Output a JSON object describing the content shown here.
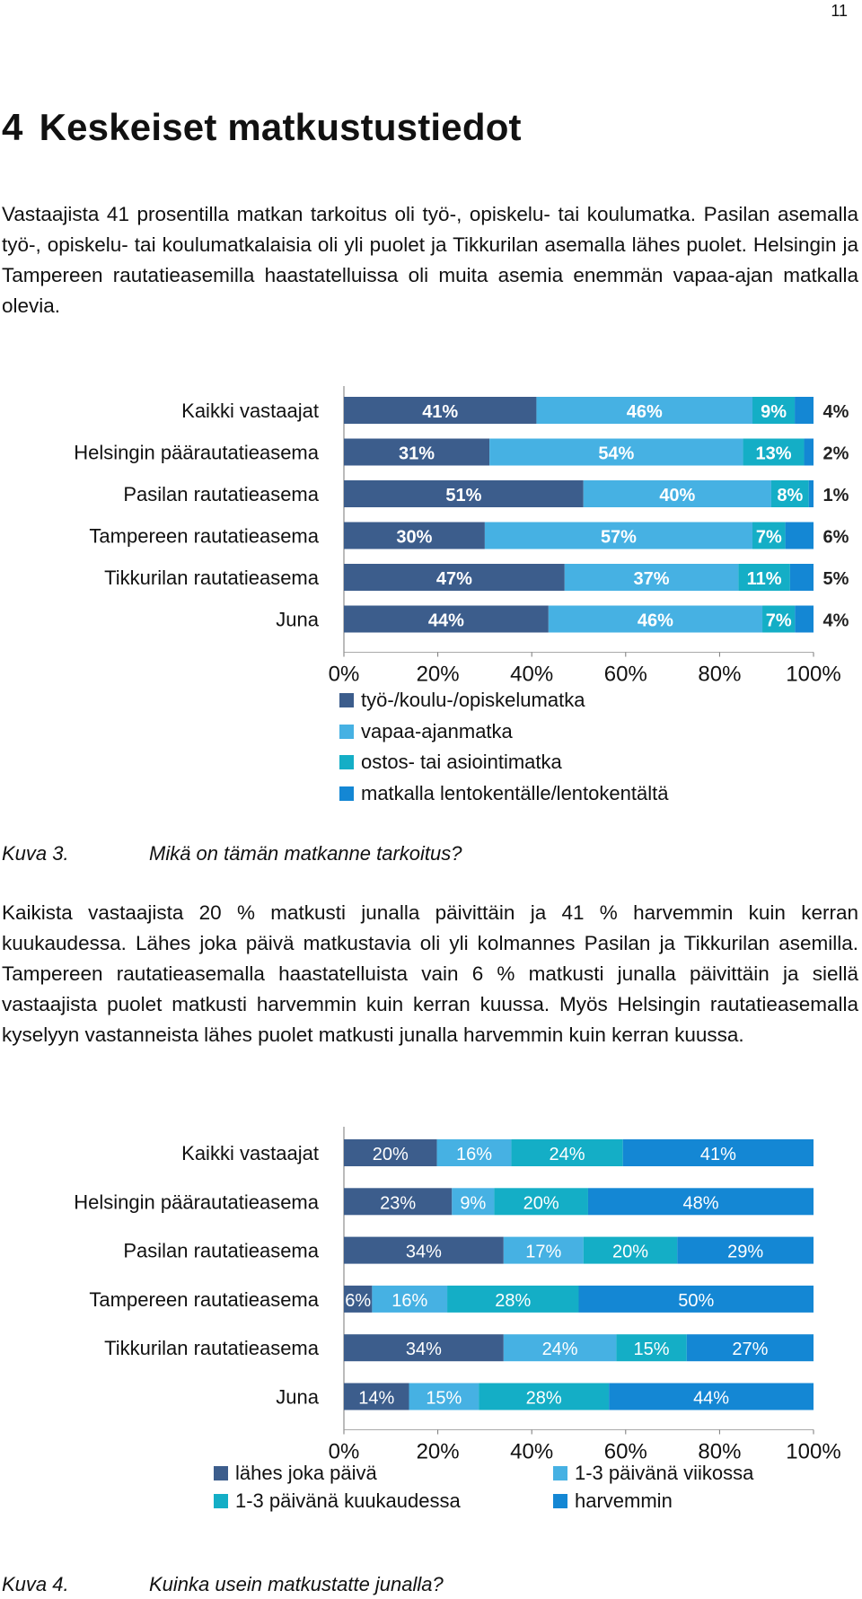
{
  "page": {
    "number": "11",
    "heading_number": "4",
    "heading_text": "Keskeiset matkustustiedot",
    "paragraph1": "Vastaajista 41 prosentilla matkan tarkoitus oli työ-, opiskelu- tai koulumatka. Pasilan asemalla työ-, opiskelu- tai koulumatkalaisia oli yli puolet ja Tikkurilan asemalla lähes puolet. Helsingin ja Tampereen rautatieasemilla haastatelluissa oli muita asemia enemmän vapaa-ajan matkalla olevia.",
    "caption1_label": "Kuva 3.",
    "caption1_text": "Mikä on tämän matkanne tarkoitus?",
    "paragraph2": "Kaikista vastaajista 20 % matkusti junalla päivittäin ja 41 % harvemmin kuin kerran kuukaudessa. Lähes joka päivä matkustavia oli yli kolmannes Pasilan ja Tikkurilan asemilla. Tampereen rautatieasemalla haastatelluista vain 6 % matkusti junalla päivittäin ja siellä vastaajista puolet matkusti harvemmin kuin kerran kuussa. Myös Helsingin rautatieasemalla kyselyyn vastanneista lähes puolet matkusti junalla harvemmin kuin kerran kuussa.",
    "caption2_label": "Kuva 4.",
    "caption2_text": "Kuinka usein matkustatte junalla?"
  },
  "colors": {
    "c1": "#3c5d8c",
    "c2": "#46b1e3",
    "c3": "#14aec6",
    "c4": "#1487d4"
  },
  "chart_data": [
    {
      "type": "bar",
      "orientation": "horizontal",
      "stacked": true,
      "title": "",
      "xlim": [
        0,
        100
      ],
      "x_ticks": [
        "0%",
        "20%",
        "40%",
        "60%",
        "80%",
        "100%"
      ],
      "categories": [
        "Kaikki vastaajat",
        "Helsingin päärautatieasema",
        "Pasilan rautatieasema",
        "Tampereen rautatieasema",
        "Tikkurilan rautatieasema",
        "Juna"
      ],
      "series": [
        {
          "name": "työ-/koulu-/opiskelumatka",
          "values": [
            41,
            31,
            51,
            30,
            47,
            44
          ]
        },
        {
          "name": "vapaa-ajanmatka",
          "values": [
            46,
            54,
            40,
            57,
            37,
            46
          ]
        },
        {
          "name": "ostos- tai asiointimatka",
          "values": [
            9,
            13,
            8,
            7,
            11,
            7
          ]
        },
        {
          "name": "matkalla lentokentälle/lentokentältä",
          "values": [
            4,
            2,
            1,
            6,
            5,
            4
          ]
        }
      ],
      "legend_position": "bottom"
    },
    {
      "type": "bar",
      "orientation": "horizontal",
      "stacked": true,
      "title": "",
      "xlim": [
        0,
        100
      ],
      "x_ticks": [
        "0%",
        "20%",
        "40%",
        "60%",
        "80%",
        "100%"
      ],
      "categories": [
        "Kaikki vastaajat",
        "Helsingin päärautatieasema",
        "Pasilan rautatieasema",
        "Tampereen rautatieasema",
        "Tikkurilan rautatieasema",
        "Juna"
      ],
      "series": [
        {
          "name": "lähes joka päivä",
          "values": [
            20,
            23,
            34,
            6,
            34,
            14
          ]
        },
        {
          "name": "1-3 päivänä viikossa",
          "values": [
            16,
            9,
            17,
            16,
            24,
            15
          ]
        },
        {
          "name": "1-3 päivänä kuukaudessa",
          "values": [
            24,
            20,
            20,
            28,
            15,
            28
          ]
        },
        {
          "name": "harvemmin",
          "values": [
            41,
            48,
            29,
            50,
            27,
            44
          ]
        }
      ],
      "legend_position": "bottom"
    }
  ]
}
